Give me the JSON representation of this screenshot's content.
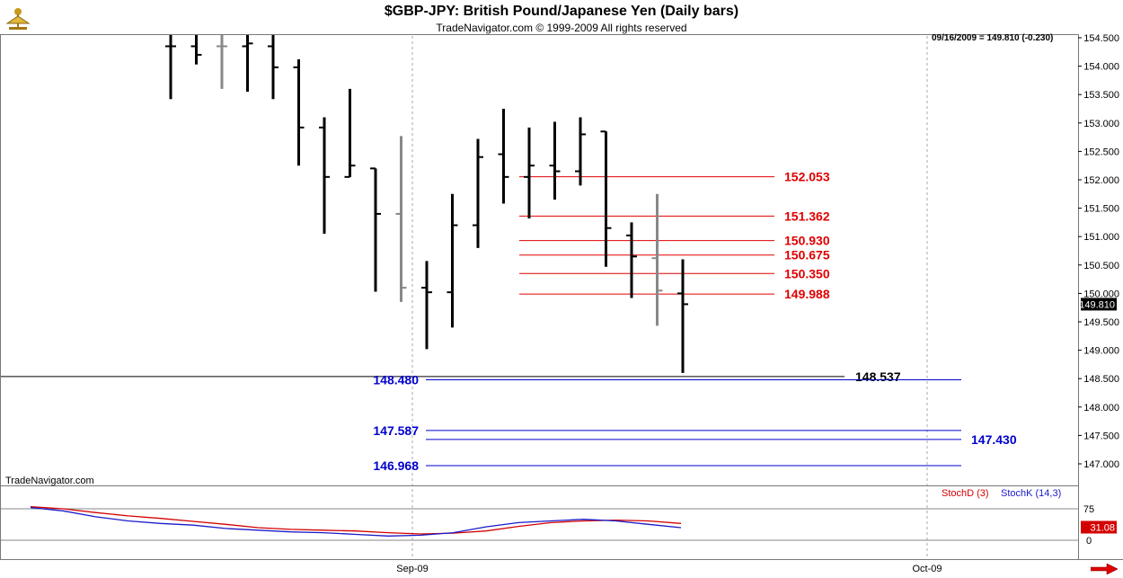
{
  "header": {
    "title": "$GBP-JPY:  British Pound/Japanese Yen  (Daily bars)",
    "subtitle": "TradeNavigator.com © 1999-2009 All rights reserved"
  },
  "stamp": "09/16/2009 = 149.810 (-0.230)",
  "brand": "TradeNavigator.com",
  "legend": {
    "stoch_d": "StochD (3)",
    "stoch_k": "StochK (14,3)"
  },
  "colors": {
    "resistance": "#e00000",
    "support": "#0000cc",
    "bar": "#000000",
    "bar_inside": "#888888",
    "stoch_d": "#d40000",
    "stoch_k": "#1a1ac8"
  },
  "chart_data": {
    "type": "bar",
    "last_price_label": "149.810",
    "y_ticks": [
      "154.500",
      "154.000",
      "153.500",
      "153.000",
      "152.500",
      "152.000",
      "151.500",
      "151.000",
      "150.500",
      "150.000",
      "149.500",
      "149.000",
      "148.500",
      "148.000",
      "147.500",
      "147.000"
    ],
    "x_ticks": [
      "Sep-09",
      "Oct-09"
    ],
    "ohlc": [
      {
        "o": 154.35,
        "h": 154.55,
        "l": 153.42,
        "c": 154.35,
        "color": "black"
      },
      {
        "o": 154.35,
        "h": 154.55,
        "l": 154.03,
        "c": 154.2,
        "color": "black"
      },
      {
        "o": 154.35,
        "h": 154.55,
        "l": 153.6,
        "c": 154.35,
        "color": "gray"
      },
      {
        "o": 154.35,
        "h": 154.55,
        "l": 153.55,
        "c": 154.4,
        "color": "black"
      },
      {
        "o": 154.35,
        "h": 154.55,
        "l": 153.42,
        "c": 153.98,
        "color": "black"
      },
      {
        "o": 153.98,
        "h": 154.12,
        "l": 152.25,
        "c": 152.92,
        "color": "black"
      },
      {
        "o": 152.92,
        "h": 153.1,
        "l": 151.05,
        "c": 152.05,
        "color": "black"
      },
      {
        "o": 152.05,
        "h": 153.6,
        "l": 152.05,
        "c": 152.25,
        "color": "black"
      },
      {
        "o": 152.2,
        "h": 152.2,
        "l": 150.03,
        "c": 151.4,
        "color": "black"
      },
      {
        "o": 151.4,
        "h": 152.77,
        "l": 149.85,
        "c": 150.1,
        "color": "gray"
      },
      {
        "o": 150.1,
        "h": 150.57,
        "l": 149.02,
        "c": 150.02,
        "color": "black"
      },
      {
        "o": 150.02,
        "h": 151.75,
        "l": 149.4,
        "c": 151.2,
        "color": "black"
      },
      {
        "o": 151.2,
        "h": 152.72,
        "l": 150.8,
        "c": 152.4,
        "color": "black"
      },
      {
        "o": 152.45,
        "h": 153.25,
        "l": 151.58,
        "c": 152.05,
        "color": "black"
      },
      {
        "o": 152.05,
        "h": 152.92,
        "l": 151.32,
        "c": 152.25,
        "color": "black"
      },
      {
        "o": 152.25,
        "h": 153.02,
        "l": 151.65,
        "c": 152.15,
        "color": "black"
      },
      {
        "o": 152.15,
        "h": 153.1,
        "l": 151.9,
        "c": 152.8,
        "color": "black"
      },
      {
        "o": 152.85,
        "h": 152.85,
        "l": 150.47,
        "c": 151.15,
        "color": "black"
      },
      {
        "o": 151.02,
        "h": 151.25,
        "l": 149.92,
        "c": 150.65,
        "color": "black"
      },
      {
        "o": 150.62,
        "h": 151.75,
        "l": 149.43,
        "c": 150.05,
        "color": "gray"
      },
      {
        "o": 150.0,
        "h": 150.6,
        "l": 148.6,
        "c": 149.81,
        "color": "black"
      }
    ],
    "levels": [
      {
        "value": 152.053,
        "label": "152.053",
        "kind": "resistance"
      },
      {
        "value": 151.362,
        "label": "151.362",
        "kind": "resistance"
      },
      {
        "value": 150.93,
        "label": "150.930",
        "kind": "resistance"
      },
      {
        "value": 150.675,
        "label": "150.675",
        "kind": "resistance"
      },
      {
        "value": 150.35,
        "label": "150.350",
        "kind": "resistance"
      },
      {
        "value": 149.988,
        "label": "149.988",
        "kind": "resistance"
      },
      {
        "value": 148.537,
        "label": "148.537",
        "kind": "black"
      },
      {
        "value": 148.48,
        "label": "148.480",
        "kind": "support"
      },
      {
        "value": 147.587,
        "label": "147.587",
        "kind": "support"
      },
      {
        "value": 147.43,
        "label": "147.430",
        "kind": "support"
      },
      {
        "value": 146.968,
        "label": "146.968",
        "kind": "support"
      }
    ],
    "stochastic": {
      "y_ticks": [
        "75",
        "0"
      ],
      "last_label": "31.08",
      "stoch_d": [
        80,
        75,
        66,
        58,
        52,
        45,
        38,
        30,
        26,
        24,
        22,
        18,
        15,
        17,
        22,
        33,
        42,
        46,
        48,
        46,
        40
      ],
      "stoch_k": [
        78,
        70,
        56,
        46,
        40,
        36,
        28,
        24,
        20,
        18,
        14,
        10,
        12,
        18,
        32,
        42,
        46,
        50,
        46,
        38,
        30
      ]
    }
  }
}
